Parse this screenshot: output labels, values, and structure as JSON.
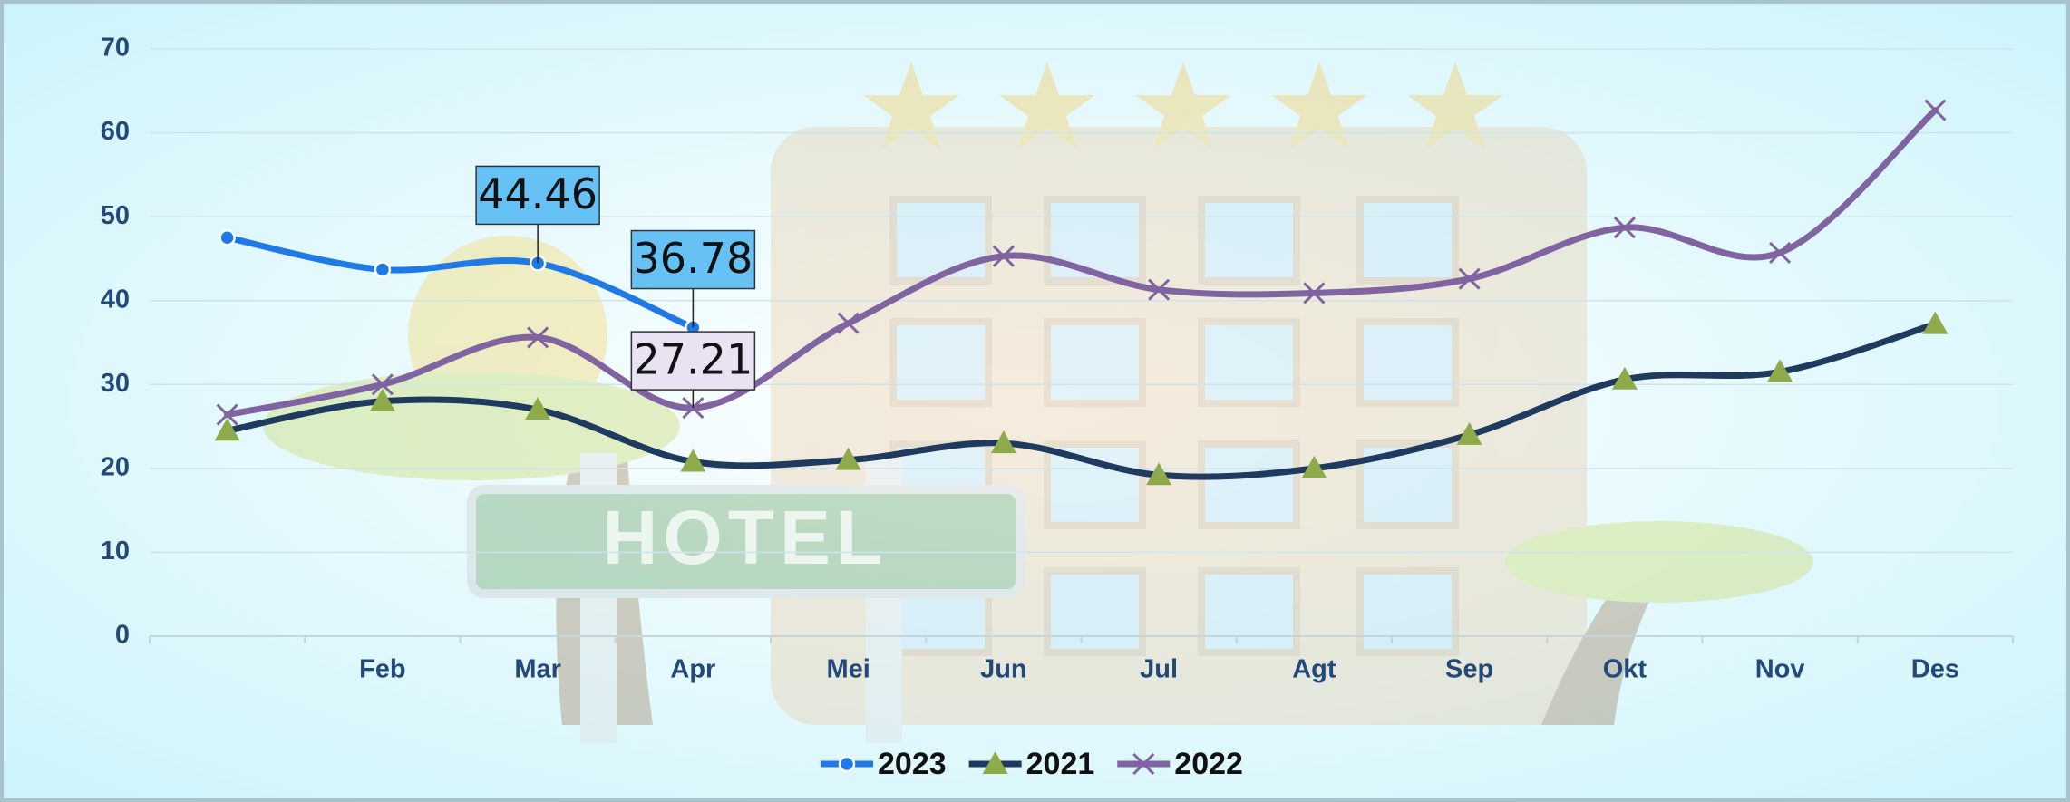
{
  "chart_data": {
    "type": "line",
    "background_sign": "HOTEL",
    "categories": [
      null,
      "Feb",
      "Mar",
      "Apr",
      "Mei",
      "Jun",
      "Jul",
      "Agt",
      "Sep",
      "Okt",
      "Nov",
      "Des"
    ],
    "series": [
      {
        "name": "2023",
        "color": "#1f7ae8",
        "marker": "circle",
        "marker_color": "#1f7ae8",
        "values": [
          47.5,
          43.7,
          44.46,
          36.78,
          null,
          null,
          null,
          null,
          null,
          null,
          null,
          null
        ],
        "value_labels": [
          null,
          null,
          "44.46",
          "36.78",
          null,
          null,
          null,
          null,
          null,
          null,
          null,
          null
        ],
        "label_color": "#66c2f5"
      },
      {
        "name": "2021",
        "color": "#1f3a5f",
        "marker": "triangle",
        "marker_color": "#8faa4a",
        "values": [
          24.5,
          28,
          27,
          20.8,
          21,
          23,
          19.2,
          20,
          24,
          30.6,
          31.5,
          37.2
        ]
      },
      {
        "name": "2022",
        "color": "#8064a2",
        "marker": "x",
        "marker_color": "#8064a2",
        "values": [
          26.4,
          30,
          35.6,
          27.21,
          37.3,
          45.3,
          41.3,
          40.9,
          42.6,
          48.7,
          45.7,
          62.7
        ],
        "value_labels": [
          null,
          null,
          null,
          "27.21",
          null,
          null,
          null,
          null,
          null,
          null,
          null,
          null
        ],
        "label_color": "#e8e2f2"
      }
    ],
    "ylim": [
      0,
      70
    ],
    "yticks": [
      0,
      10,
      20,
      30,
      40,
      50,
      60,
      70
    ],
    "grid": true,
    "legend": "bottom"
  }
}
